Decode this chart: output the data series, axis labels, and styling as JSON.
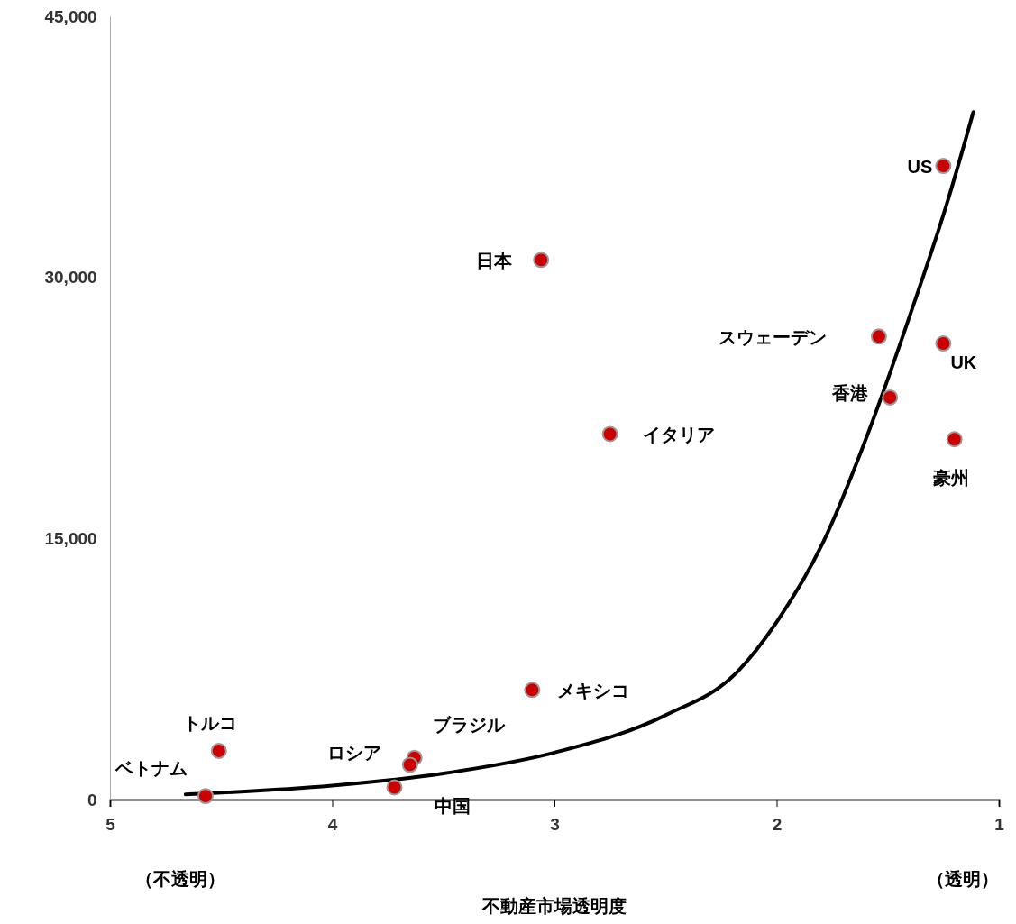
{
  "chart_data": {
    "type": "scatter",
    "xlabel": "不動産市場透明度",
    "xlim": [
      5,
      1
    ],
    "xticks": [
      5,
      4,
      3,
      2,
      1
    ],
    "ylim": [
      0,
      45000
    ],
    "yticks": [
      0,
      {
        "value": 15000,
        "label": "15,000"
      },
      {
        "value": 30000,
        "label": "30,000"
      },
      {
        "value": 45000,
        "label": "45,000"
      }
    ],
    "legend": false,
    "grid": false,
    "annotations": [
      "（不透明）",
      "（透明）"
    ],
    "series": [
      {
        "name": "US",
        "color": "#cc0000",
        "marker": "circle",
        "x": [
          1.25
        ],
        "values": [
          36400
        ]
      },
      {
        "name": "日本",
        "color": "#cc0000",
        "marker": "circle",
        "x": [
          3.06
        ],
        "values": [
          31000
        ]
      },
      {
        "name": "スウェーデン",
        "color": "#cc0000",
        "marker": "circle",
        "x": [
          1.54
        ],
        "values": [
          26600
        ]
      },
      {
        "name": "UK",
        "color": "#cc0000",
        "marker": "circle",
        "x": [
          1.25
        ],
        "values": [
          26200
        ]
      },
      {
        "name": "香港",
        "color": "#cc0000",
        "marker": "circle",
        "x": [
          1.49
        ],
        "values": [
          23100
        ]
      },
      {
        "name": "イタリア",
        "color": "#cc0000",
        "marker": "circle",
        "x": [
          2.75
        ],
        "values": [
          21000
        ]
      },
      {
        "name": "豪州",
        "color": "#cc0000",
        "marker": "circle",
        "x": [
          1.2
        ],
        "values": [
          20700
        ]
      },
      {
        "name": "メキシコ",
        "color": "#cc0000",
        "marker": "circle",
        "x": [
          3.1
        ],
        "values": [
          6300
        ]
      },
      {
        "name": "トルコ",
        "color": "#cc0000",
        "marker": "circle",
        "x": [
          4.51
        ],
        "values": [
          2800
        ]
      },
      {
        "name": "ブラジル",
        "color": "#cc0000",
        "marker": "circle",
        "x": [
          3.63
        ],
        "values": [
          2400
        ]
      },
      {
        "name": "ロシア",
        "color": "#cc0000",
        "marker": "circle",
        "x": [
          3.65
        ],
        "values": [
          2000
        ]
      },
      {
        "name": "中国",
        "color": "#cc0000",
        "marker": "circle",
        "x": [
          3.72
        ],
        "values": [
          700
        ]
      },
      {
        "name": "ベトナム",
        "color": "#cc0000",
        "marker": "circle",
        "x": [
          4.57
        ],
        "values": [
          200
        ]
      },
      {
        "type": "line",
        "color": "#000000",
        "line_style": "solid",
        "marker": "none",
        "x": [
          4.66,
          4.0,
          3.5,
          3.0,
          2.5,
          2.18,
          2.0,
          1.79,
          1.59,
          1.39,
          1.23,
          1.115
        ],
        "values": [
          300,
          800,
          1500,
          2700,
          4850,
          7300,
          10200,
          14800,
          21000,
          28200,
          34400,
          39500
        ]
      }
    ]
  }
}
